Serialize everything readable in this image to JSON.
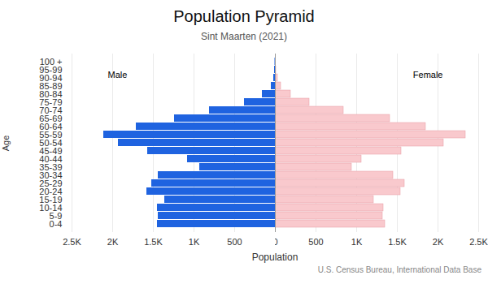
{
  "chart_data": {
    "type": "bar",
    "orientation": "horizontal",
    "title": "Population Pyramid",
    "subtitle": "Sint Maarten (2021)",
    "xlabel": "Population",
    "ylabel": "Age",
    "source": "U.S. Census Bureau, International Data Base",
    "categories": [
      "0-4",
      "5-9",
      "10-14",
      "15-19",
      "20-24",
      "25-29",
      "30-34",
      "35-39",
      "40-44",
      "45-49",
      "50-54",
      "55-59",
      "60-64",
      "65-69",
      "70-74",
      "75-79",
      "80-84",
      "85-89",
      "90-94",
      "95-99",
      "100 +"
    ],
    "series": [
      {
        "name": "Male",
        "color": "#1f63e0",
        "values": [
          1450,
          1440,
          1450,
          1360,
          1580,
          1520,
          1440,
          930,
          1080,
          1570,
          1930,
          2110,
          1710,
          1240,
          810,
          380,
          160,
          50,
          20,
          10,
          5
        ]
      },
      {
        "name": "Female",
        "color": "#f9c9cd",
        "values": [
          1350,
          1320,
          1330,
          1210,
          1540,
          1590,
          1450,
          940,
          1060,
          1550,
          2070,
          2340,
          1850,
          1410,
          840,
          420,
          190,
          70,
          30,
          10,
          5
        ]
      }
    ],
    "xlim": [
      0,
      2500
    ],
    "xticks": [
      0,
      500,
      {
        "value": 1000,
        "label": "1K"
      },
      {
        "value": 1500,
        "label": "1.5K"
      },
      {
        "value": 2000,
        "label": "2K"
      },
      {
        "value": 2500,
        "label": "2.5K"
      }
    ],
    "grid": true
  }
}
